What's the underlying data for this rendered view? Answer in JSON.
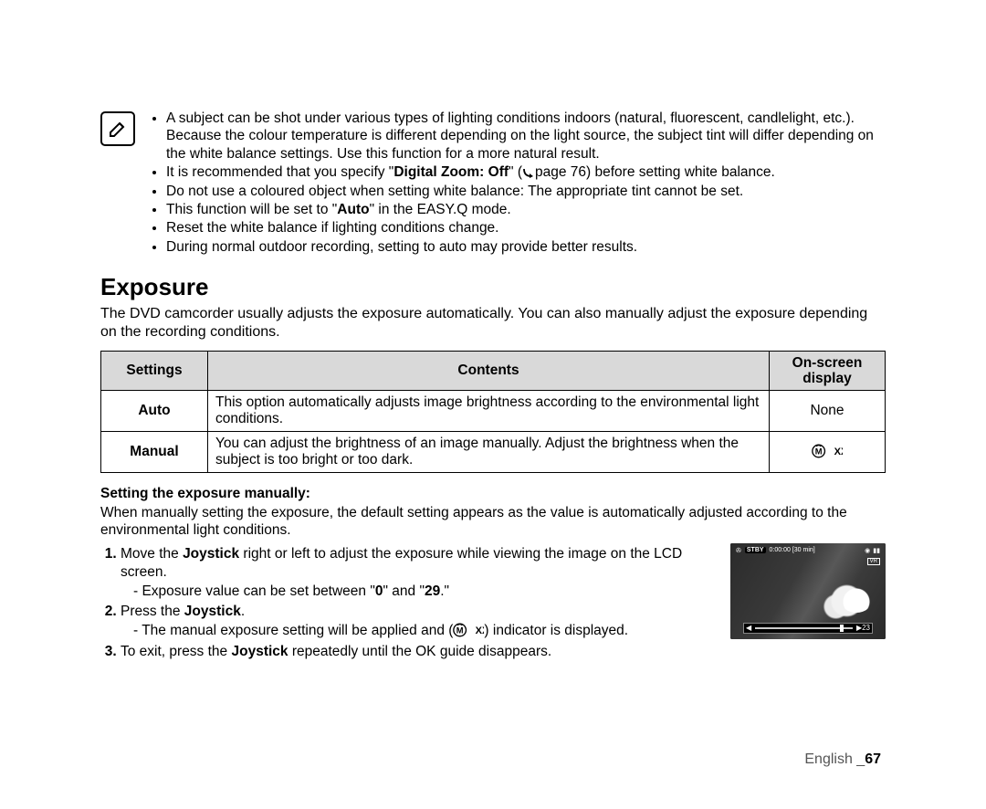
{
  "note": {
    "bullets": [
      "A subject can be shot under various types of lighting conditions indoors (natural, fluorescent, candlelight, etc.). Because the colour temperature is different depending on the light source, the subject tint will differ depending on the white balance settings. Use this function for a more natural result.",
      "It is recommended that you specify \"{B}Digital Zoom: Off{/B}\" ({ARROW}page 76) before setting white balance.",
      "Do not use a coloured object when setting white balance: The appropriate tint cannot be set.",
      "This function will be set to \"{B}Auto{/B}\" in the EASY.Q mode.",
      "Reset the white balance if lighting conditions change.",
      "During normal outdoor recording, setting to auto may provide better results."
    ]
  },
  "section": {
    "title": "Exposure",
    "intro": "The DVD camcorder usually adjusts the exposure automatically. You can also manually adjust the exposure depending on the recording conditions."
  },
  "table": {
    "headers": {
      "settings": "Settings",
      "contents": "Contents",
      "display": "On-screen display"
    },
    "rows": [
      {
        "setting": "Auto",
        "content": "This option automatically adjusts image brightness according to the environmental light conditions.",
        "display": "None",
        "display_is_icon": false
      },
      {
        "setting": "Manual",
        "content": "You can adjust the brightness of an image manually. Adjust the brightness when the subject is too bright or too dark.",
        "display": "manual-exposure-icon",
        "display_is_icon": true,
        "display_text": "XX"
      }
    ]
  },
  "manual": {
    "subhead": "Setting the exposure manually:",
    "intro": "When manually setting the exposure, the default setting appears as the value is automatically adjusted according to the environmental light conditions.",
    "steps": [
      {
        "text": "Move the {B}Joystick{/B} right or left to adjust the exposure while viewing the image on the LCD screen.",
        "sub": [
          "Exposure value can be set between \"{B}0{/B}\" and \"{B}29{/B}.\""
        ]
      },
      {
        "text": "Press the {B}Joystick{/B}.",
        "sub": [
          "The manual exposure setting will be applied and ({ICON}) indicator is displayed."
        ]
      },
      {
        "text": "To exit, press the {B}Joystick{/B} repeatedly until the OK guide disappears.",
        "sub": []
      }
    ]
  },
  "lcd": {
    "stby": "STBY",
    "time": "0:00:00 [30 min]",
    "vr": "VR",
    "slider_left": "◀",
    "slider_right": "▶",
    "slider_val": "23"
  },
  "footer": {
    "lang": "English",
    "page": "67"
  },
  "colors": {
    "table_header_bg": "#d9d9d9",
    "border": "#000000",
    "footer_text": "#555555",
    "lcd_bg": "#2a2a2a"
  }
}
